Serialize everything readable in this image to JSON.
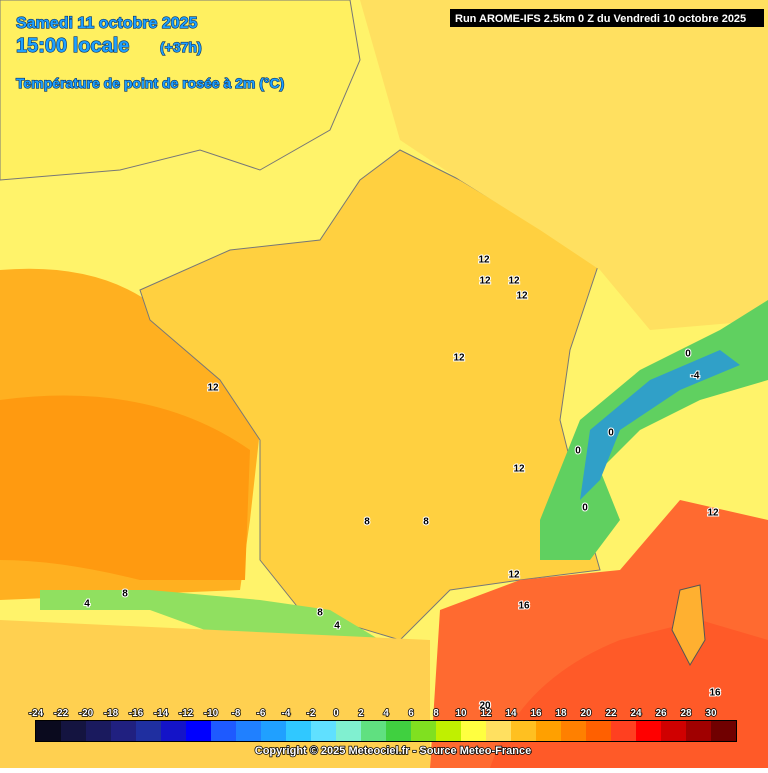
{
  "header": {
    "date": "Samedi 11 octobre 2025",
    "time": "15:00 locale",
    "lead": "(+37h)",
    "parameter": "Température de point de rosée à 2m (°C)",
    "run": "Run AROME-IFS 2.5km 0 Z du Vendredi 10 octobre 2025"
  },
  "contour_labels": [
    12,
    12,
    12,
    12,
    12,
    12,
    12,
    12,
    12,
    16,
    16,
    8,
    8,
    8,
    8,
    4,
    4,
    0,
    0,
    0,
    0,
    -4,
    20
  ],
  "colorbar": {
    "ticks": [
      -24,
      -22,
      -20,
      -18,
      -16,
      -14,
      -12,
      -10,
      -8,
      -6,
      -4,
      -2,
      0,
      2,
      4,
      6,
      8,
      10,
      12,
      14,
      16,
      18,
      20,
      22,
      24,
      26,
      28,
      30
    ],
    "colors": [
      "#0a0a1e",
      "#141440",
      "#1a1a5e",
      "#202080",
      "#1f2fa0",
      "#1414c8",
      "#0000ff",
      "#1e5aff",
      "#2080ff",
      "#20a0ff",
      "#30c8ff",
      "#60e0ff",
      "#80f0d0",
      "#60e080",
      "#40d040",
      "#80e020",
      "#c0f000",
      "#ffff40",
      "#ffe060",
      "#ffc020",
      "#ffa000",
      "#ff8000",
      "#ff6000",
      "#ff4020",
      "#ff0000",
      "#d00000",
      "#a00000",
      "#700000"
    ]
  },
  "footer": {
    "copyright": "Copyright © 2025 Meteociel.fr - Source Meteo-France"
  }
}
